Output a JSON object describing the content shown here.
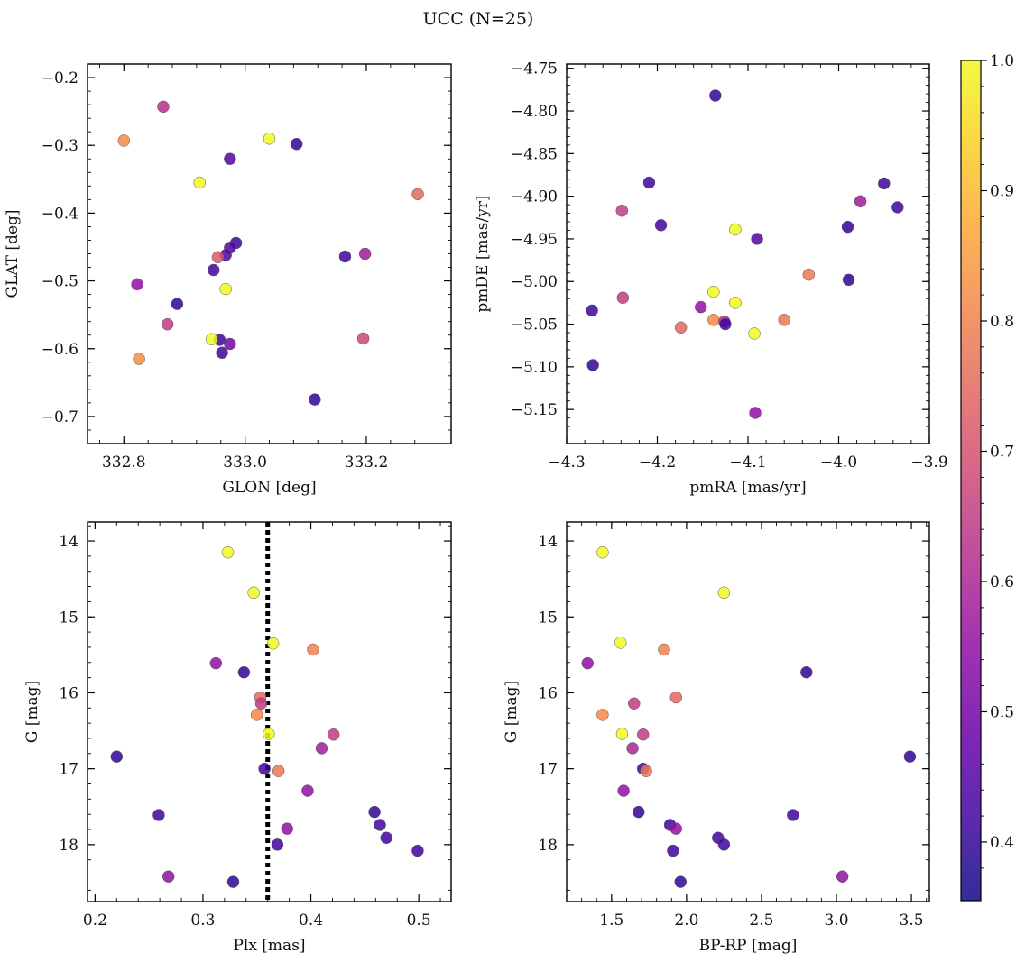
{
  "title": "UCC (N=25)",
  "chart_data": [
    {
      "type": "scatter",
      "xlabel": "GLON [deg]",
      "ylabel": "GLAT [deg]",
      "xlim": [
        332.74,
        333.34
      ],
      "ylim": [
        -0.74,
        -0.18
      ],
      "xticks": [
        332.8,
        333.0,
        333.2
      ],
      "xtick_labels": [
        "332.8",
        "333.0",
        "333.2"
      ],
      "yticks": [
        -0.7,
        -0.6,
        -0.5,
        -0.4,
        -0.3,
        -0.2
      ],
      "ytick_labels": [
        "−0.7",
        "−0.6",
        "−0.5",
        "−0.4",
        "−0.3",
        "−0.2"
      ],
      "y_inverted": false,
      "points": [
        {
          "x": 332.8,
          "y": -0.293,
          "c": 0.82
        },
        {
          "x": 332.865,
          "y": -0.243,
          "c": 0.62
        },
        {
          "x": 332.925,
          "y": -0.355,
          "c": 1.0
        },
        {
          "x": 332.975,
          "y": -0.32,
          "c": 0.45
        },
        {
          "x": 333.04,
          "y": -0.29,
          "c": 1.0
        },
        {
          "x": 333.085,
          "y": -0.298,
          "c": 0.4
        },
        {
          "x": 333.285,
          "y": -0.372,
          "c": 0.75
        },
        {
          "x": 332.985,
          "y": -0.444,
          "c": 0.42
        },
        {
          "x": 332.975,
          "y": -0.451,
          "c": 0.45
        },
        {
          "x": 332.968,
          "y": -0.462,
          "c": 0.44
        },
        {
          "x": 332.948,
          "y": -0.484,
          "c": 0.42
        },
        {
          "x": 332.955,
          "y": -0.465,
          "c": 0.72
        },
        {
          "x": 332.822,
          "y": -0.505,
          "c": 0.55
        },
        {
          "x": 332.968,
          "y": -0.512,
          "c": 1.0
        },
        {
          "x": 333.165,
          "y": -0.464,
          "c": 0.42
        },
        {
          "x": 333.198,
          "y": -0.46,
          "c": 0.58
        },
        {
          "x": 332.888,
          "y": -0.534,
          "c": 0.4
        },
        {
          "x": 332.872,
          "y": -0.564,
          "c": 0.65
        },
        {
          "x": 332.958,
          "y": -0.587,
          "c": 0.42
        },
        {
          "x": 332.975,
          "y": -0.593,
          "c": 0.5
        },
        {
          "x": 332.962,
          "y": -0.606,
          "c": 0.42
        },
        {
          "x": 332.945,
          "y": -0.586,
          "c": 1.0
        },
        {
          "x": 333.195,
          "y": -0.585,
          "c": 0.68
        },
        {
          "x": 332.825,
          "y": -0.615,
          "c": 0.82
        },
        {
          "x": 333.115,
          "y": -0.675,
          "c": 0.4
        }
      ]
    },
    {
      "type": "scatter",
      "xlabel": "pmRA [mas/yr]",
      "ylabel": "pmDE [mas/yr]",
      "xlim": [
        -4.3,
        -3.9
      ],
      "ylim": [
        -5.19,
        -4.745
      ],
      "xticks": [
        -4.3,
        -4.2,
        -4.1,
        -4.0,
        -3.9
      ],
      "xtick_labels": [
        "−4.3",
        "−4.2",
        "−4.1",
        "−4.0",
        "−3.9"
      ],
      "yticks": [
        -5.15,
        -5.1,
        -5.05,
        -5.0,
        -4.95,
        -4.9,
        -4.85,
        -4.8,
        -4.75
      ],
      "ytick_labels": [
        "−5.15",
        "−5.10",
        "−5.05",
        "−5.00",
        "−4.95",
        "−4.90",
        "−4.85",
        "−4.80",
        "−4.75"
      ],
      "y_inverted": false,
      "points": [
        {
          "x": -4.136,
          "y": -4.782,
          "c": 0.4
        },
        {
          "x": -4.209,
          "y": -4.884,
          "c": 0.42
        },
        {
          "x": -4.239,
          "y": -4.917,
          "c": 0.65
        },
        {
          "x": -4.196,
          "y": -4.934,
          "c": 0.42
        },
        {
          "x": -4.114,
          "y": -4.939,
          "c": 1.0
        },
        {
          "x": -4.09,
          "y": -4.95,
          "c": 0.45
        },
        {
          "x": -3.976,
          "y": -4.906,
          "c": 0.58
        },
        {
          "x": -3.95,
          "y": -4.885,
          "c": 0.42
        },
        {
          "x": -3.935,
          "y": -4.913,
          "c": 0.42
        },
        {
          "x": -3.99,
          "y": -4.936,
          "c": 0.4
        },
        {
          "x": -3.989,
          "y": -4.998,
          "c": 0.4
        },
        {
          "x": -4.033,
          "y": -4.992,
          "c": 0.78
        },
        {
          "x": -4.138,
          "y": -5.012,
          "c": 1.0
        },
        {
          "x": -4.238,
          "y": -5.019,
          "c": 0.65
        },
        {
          "x": -4.152,
          "y": -5.03,
          "c": 0.55
        },
        {
          "x": -4.114,
          "y": -5.025,
          "c": 1.0
        },
        {
          "x": -4.272,
          "y": -5.034,
          "c": 0.42
        },
        {
          "x": -4.138,
          "y": -5.045,
          "c": 0.82
        },
        {
          "x": -4.126,
          "y": -5.047,
          "c": 0.6
        },
        {
          "x": -4.125,
          "y": -5.05,
          "c": 0.42
        },
        {
          "x": -4.174,
          "y": -5.054,
          "c": 0.75
        },
        {
          "x": -4.06,
          "y": -5.045,
          "c": 0.78
        },
        {
          "x": -4.093,
          "y": -5.061,
          "c": 1.0
        },
        {
          "x": -4.271,
          "y": -5.098,
          "c": 0.4
        },
        {
          "x": -4.092,
          "y": -5.154,
          "c": 0.55
        }
      ]
    },
    {
      "type": "scatter",
      "xlabel": "Plx [mas]",
      "ylabel": "G [mag]",
      "xlim": [
        0.193,
        0.53
      ],
      "ylim": [
        18.75,
        13.75
      ],
      "xticks": [
        0.2,
        0.3,
        0.4,
        0.5
      ],
      "xtick_labels": [
        "0.2",
        "0.3",
        "0.4",
        "0.5"
      ],
      "yticks": [
        14,
        15,
        16,
        17,
        18
      ],
      "ytick_labels": [
        "14",
        "15",
        "16",
        "17",
        "18"
      ],
      "y_inverted": true,
      "vline": 0.36,
      "points": [
        {
          "x": 0.323,
          "y": 14.15,
          "c": 1.0
        },
        {
          "x": 0.347,
          "y": 14.68,
          "c": 1.0
        },
        {
          "x": 0.365,
          "y": 15.35,
          "c": 1.0
        },
        {
          "x": 0.402,
          "y": 15.43,
          "c": 0.8
        },
        {
          "x": 0.312,
          "y": 15.61,
          "c": 0.55
        },
        {
          "x": 0.338,
          "y": 15.73,
          "c": 0.4
        },
        {
          "x": 0.353,
          "y": 16.06,
          "c": 0.75
        },
        {
          "x": 0.354,
          "y": 16.14,
          "c": 0.65
        },
        {
          "x": 0.35,
          "y": 16.29,
          "c": 0.82
        },
        {
          "x": 0.361,
          "y": 16.54,
          "c": 1.0
        },
        {
          "x": 0.421,
          "y": 16.55,
          "c": 0.65
        },
        {
          "x": 0.41,
          "y": 16.73,
          "c": 0.58
        },
        {
          "x": 0.22,
          "y": 16.84,
          "c": 0.4
        },
        {
          "x": 0.357,
          "y": 17.0,
          "c": 0.42
        },
        {
          "x": 0.37,
          "y": 17.03,
          "c": 0.78
        },
        {
          "x": 0.397,
          "y": 17.29,
          "c": 0.55
        },
        {
          "x": 0.459,
          "y": 17.57,
          "c": 0.4
        },
        {
          "x": 0.259,
          "y": 17.61,
          "c": 0.42
        },
        {
          "x": 0.464,
          "y": 17.74,
          "c": 0.42
        },
        {
          "x": 0.378,
          "y": 17.79,
          "c": 0.55
        },
        {
          "x": 0.47,
          "y": 17.91,
          "c": 0.42
        },
        {
          "x": 0.369,
          "y": 18.0,
          "c": 0.42
        },
        {
          "x": 0.499,
          "y": 18.08,
          "c": 0.42
        },
        {
          "x": 0.268,
          "y": 18.42,
          "c": 0.55
        },
        {
          "x": 0.328,
          "y": 18.49,
          "c": 0.4
        }
      ]
    },
    {
      "type": "scatter",
      "xlabel": "BP-RP [mag]",
      "ylabel": "G [mag]",
      "xlim": [
        1.2,
        3.62
      ],
      "ylim": [
        18.75,
        13.75
      ],
      "xticks": [
        1.5,
        2.0,
        2.5,
        3.0,
        3.5
      ],
      "xtick_labels": [
        "1.5",
        "2.0",
        "2.5",
        "3.0",
        "3.5"
      ],
      "yticks": [
        14,
        15,
        16,
        17,
        18
      ],
      "ytick_labels": [
        "14",
        "15",
        "16",
        "17",
        "18"
      ],
      "y_inverted": true,
      "points": [
        {
          "x": 1.44,
          "y": 14.15,
          "c": 1.0
        },
        {
          "x": 2.25,
          "y": 14.68,
          "c": 1.0
        },
        {
          "x": 1.56,
          "y": 15.34,
          "c": 1.0
        },
        {
          "x": 1.85,
          "y": 15.43,
          "c": 0.8
        },
        {
          "x": 1.34,
          "y": 15.61,
          "c": 0.55
        },
        {
          "x": 2.8,
          "y": 15.73,
          "c": 0.4
        },
        {
          "x": 1.93,
          "y": 16.06,
          "c": 0.75
        },
        {
          "x": 1.65,
          "y": 16.14,
          "c": 0.65
        },
        {
          "x": 1.44,
          "y": 16.29,
          "c": 0.82
        },
        {
          "x": 1.57,
          "y": 16.54,
          "c": 1.0
        },
        {
          "x": 1.71,
          "y": 16.55,
          "c": 0.65
        },
        {
          "x": 1.64,
          "y": 16.73,
          "c": 0.6
        },
        {
          "x": 3.49,
          "y": 16.84,
          "c": 0.4
        },
        {
          "x": 1.71,
          "y": 17.0,
          "c": 0.42
        },
        {
          "x": 1.73,
          "y": 17.03,
          "c": 0.78
        },
        {
          "x": 1.58,
          "y": 17.29,
          "c": 0.55
        },
        {
          "x": 1.68,
          "y": 17.57,
          "c": 0.4
        },
        {
          "x": 2.71,
          "y": 17.61,
          "c": 0.42
        },
        {
          "x": 1.89,
          "y": 17.74,
          "c": 0.42
        },
        {
          "x": 1.93,
          "y": 17.79,
          "c": 0.55
        },
        {
          "x": 2.21,
          "y": 17.91,
          "c": 0.42
        },
        {
          "x": 2.25,
          "y": 18.0,
          "c": 0.42
        },
        {
          "x": 1.91,
          "y": 18.08,
          "c": 0.42
        },
        {
          "x": 3.04,
          "y": 18.42,
          "c": 0.55
        },
        {
          "x": 1.96,
          "y": 18.49,
          "c": 0.4
        }
      ]
    }
  ],
  "colorbar": {
    "cmap": "plasma",
    "range": [
      0.355,
      1.0
    ],
    "ticks": [
      0.4,
      0.5,
      0.6,
      0.7,
      0.8,
      0.9,
      1.0
    ],
    "tick_labels": [
      "0.4",
      "0.5",
      "0.6",
      "0.7",
      "0.8",
      "0.9",
      "1.0"
    ]
  }
}
